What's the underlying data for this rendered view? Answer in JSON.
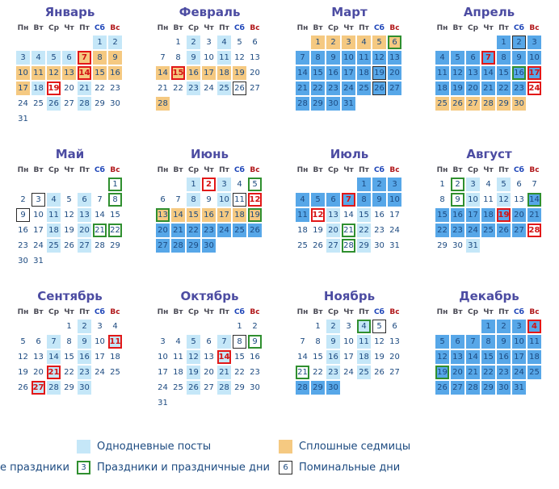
{
  "weekday_headers": [
    "Пн",
    "Вт",
    "Ср",
    "Чт",
    "Пт",
    "Сб",
    "Вс"
  ],
  "colors": {
    "one_day_fast": "#c5e7f8",
    "multi_day_fast": "#57a7e8",
    "continuous_week": "#f5c981",
    "feast_border": "#e21818",
    "holiday_border": "#2f8f2f",
    "memorial_border": "#2b2b2b"
  },
  "cell_codes": {
    "w": "white background",
    "l": "one-day fast (light blue)",
    "d": "multi-day fast (blue)",
    "o": "continuous week (orange)",
    "r": "red feast border",
    "g": "green holiday border",
    "k": "black memorial border",
    "t": "red day number"
  },
  "months": [
    {
      "name": "Январь",
      "start": 5,
      "cells": [
        "l",
        "l",
        "l",
        "l",
        "l",
        "l",
        "o r t",
        "o",
        "o",
        "o",
        "o",
        "o",
        "o",
        "o r t",
        "o",
        "o",
        "o",
        "l",
        "w r t",
        "w",
        "l",
        "w",
        "w",
        "w",
        "w",
        "l",
        "w",
        "l",
        "w",
        "w",
        "w"
      ]
    },
    {
      "name": "Февраль",
      "start": 1,
      "cells": [
        "w",
        "l",
        "w",
        "l",
        "w",
        "w",
        "w",
        "w",
        "l",
        "w",
        "l",
        "w",
        "w",
        "o",
        "o r t",
        "o",
        "o",
        "o",
        "o",
        "w",
        "w",
        "w",
        "l",
        "w",
        "l",
        "w k",
        "w",
        "o"
      ]
    },
    {
      "name": "Март",
      "start": 1,
      "cells": [
        "o",
        "o",
        "o",
        "o",
        "o",
        "o g",
        "d",
        "d",
        "d",
        "d",
        "d",
        "d",
        "d",
        "d",
        "d",
        "d",
        "d",
        "d",
        "d k",
        "d",
        "d",
        "d",
        "d",
        "d",
        "d",
        "d k",
        "d",
        "d",
        "d",
        "d",
        "d"
      ]
    },
    {
      "name": "Апрель",
      "start": 4,
      "cells": [
        "d",
        "d k",
        "d",
        "d",
        "d",
        "d",
        "d r t",
        "d",
        "d",
        "d",
        "d",
        "d",
        "d",
        "d",
        "d",
        "d g",
        "d r t",
        "d",
        "d",
        "d",
        "d",
        "d",
        "d",
        "w r t",
        "o",
        "o",
        "o",
        "o",
        "o",
        "o"
      ]
    },
    {
      "name": "Май",
      "start": 6,
      "cells": [
        "w g",
        "w",
        "w k",
        "l",
        "w",
        "l",
        "w",
        "w g",
        "w k",
        "w",
        "l",
        "w",
        "l",
        "w",
        "w",
        "w",
        "w",
        "l",
        "w",
        "l",
        "w g",
        "w g",
        "w",
        "w",
        "l",
        "w",
        "l",
        "w",
        "w",
        "w",
        "w"
      ]
    },
    {
      "name": "Июнь",
      "start": 2,
      "cells": [
        "l",
        "w r t",
        "l",
        "w",
        "w g",
        "w",
        "w",
        "l",
        "w",
        "l",
        "w k",
        "w r t",
        "o g",
        "o",
        "o",
        "o",
        "o",
        "o",
        "o g",
        "d",
        "d",
        "d",
        "d",
        "d",
        "d",
        "d",
        "d",
        "d",
        "d",
        "d"
      ]
    },
    {
      "name": "Июль",
      "start": 4,
      "cells": [
        "d",
        "d",
        "d",
        "d",
        "d",
        "d",
        "d r t",
        "d",
        "d",
        "d",
        "d",
        "w r t",
        "l",
        "w",
        "l",
        "w",
        "w",
        "w",
        "w",
        "l",
        "w g",
        "l",
        "w",
        "w",
        "w",
        "w",
        "l",
        "w g",
        "l",
        "w",
        "w"
      ]
    },
    {
      "name": "Август",
      "start": 0,
      "cells": [
        "w",
        "w g",
        "l",
        "w",
        "l",
        "w",
        "w",
        "w",
        "w g",
        "l",
        "w",
        "l",
        "w",
        "d g",
        "d",
        "d",
        "d",
        "d",
        "d r t",
        "d",
        "d",
        "d",
        "d",
        "d",
        "d",
        "d",
        "d",
        "w r t",
        "w",
        "w",
        "l"
      ]
    },
    {
      "name": "Сентябрь",
      "start": 3,
      "cells": [
        "w",
        "l",
        "w",
        "w",
        "w",
        "w",
        "l",
        "w",
        "l",
        "w",
        "l r t",
        "w",
        "w",
        "l",
        "w",
        "l",
        "w",
        "w",
        "w",
        "w",
        "l r t",
        "w",
        "l",
        "w",
        "w",
        "w",
        "l r t",
        "l",
        "w",
        "l"
      ]
    },
    {
      "name": "Октябрь",
      "start": 5,
      "cells": [
        "w",
        "w",
        "w",
        "w",
        "l",
        "w",
        "l",
        "w k",
        "w g",
        "w",
        "w",
        "l",
        "w",
        "l r t",
        "w",
        "w",
        "w",
        "w",
        "l",
        "w",
        "l",
        "w",
        "w",
        "w",
        "w",
        "l",
        "w",
        "l",
        "w",
        "w",
        "w"
      ]
    },
    {
      "name": "Ноябрь",
      "start": 1,
      "cells": [
        "w",
        "l",
        "w",
        "l g",
        "w k",
        "w",
        "w",
        "w",
        "l",
        "w",
        "l",
        "w",
        "w",
        "w",
        "w",
        "l",
        "w",
        "l",
        "w",
        "w",
        "w g",
        "w",
        "l",
        "w",
        "l",
        "w",
        "w",
        "d",
        "d",
        "d"
      ]
    },
    {
      "name": "Декабрь",
      "start": 3,
      "cells": [
        "d",
        "d",
        "d",
        "d r t",
        "d",
        "d",
        "d",
        "d",
        "d",
        "d",
        "d",
        "d",
        "d",
        "d",
        "d",
        "d",
        "d",
        "d",
        "d g",
        "d",
        "d",
        "d",
        "d",
        "d",
        "d",
        "d",
        "d",
        "d",
        "d",
        "d",
        "d"
      ]
    }
  ],
  "legend": {
    "one_day_fast": "Однодневные посты",
    "continuous_weeks": "Сплошные седмицы",
    "cut_text": "е праздники",
    "holiday_box": "3",
    "holidays": "Праздники и праздничные дни",
    "memorial_box": "6",
    "memorial": "Поминальные дни"
  }
}
